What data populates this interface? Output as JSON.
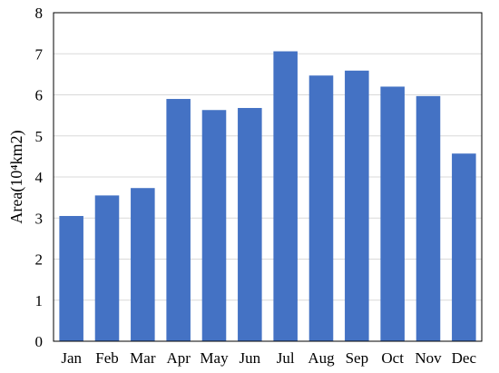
{
  "chart_data": {
    "type": "bar",
    "categories": [
      "Jan",
      "Feb",
      "Mar",
      "Apr",
      "May",
      "Jun",
      "Jul",
      "Aug",
      "Sep",
      "Oct",
      "Nov",
      "Dec"
    ],
    "values": [
      3.05,
      3.55,
      3.73,
      5.9,
      5.63,
      5.68,
      7.06,
      6.47,
      6.59,
      6.2,
      5.97,
      4.57
    ],
    "ylabel": "Area(10⁴km2)",
    "xlabel": "",
    "ylim": [
      0,
      8
    ],
    "yticks": [
      "0",
      "1",
      "2",
      "3",
      "4",
      "5",
      "6",
      "7",
      "8"
    ],
    "grid": true,
    "bar_color": "#4472C4",
    "grid_color": "#D9D9D9"
  }
}
